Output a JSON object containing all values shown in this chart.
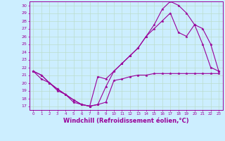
{
  "background_color": "#cceeff",
  "grid_color": "#bbddcc",
  "line_color": "#990099",
  "marker": "*",
  "xlabel": "Windchill (Refroidissement éolien,°C)",
  "xlabel_fontsize": 6.0,
  "xtick_labels": [
    "0",
    "1",
    "2",
    "3",
    "4",
    "5",
    "6",
    "7",
    "8",
    "9",
    "10",
    "11",
    "12",
    "13",
    "14",
    "15",
    "16",
    "17",
    "18",
    "19",
    "20",
    "21",
    "22",
    "23"
  ],
  "ylabel_ticks": [
    17,
    18,
    19,
    20,
    21,
    22,
    23,
    24,
    25,
    26,
    27,
    28,
    29,
    30
  ],
  "xlim": [
    -0.5,
    23.5
  ],
  "ylim": [
    16.5,
    30.5
  ],
  "lines": [
    {
      "x": [
        0,
        1,
        2,
        3,
        4,
        5,
        6,
        7,
        8,
        9,
        10,
        11,
        12,
        13,
        14,
        15,
        16,
        17,
        18,
        19,
        20,
        21,
        22,
        23
      ],
      "y": [
        21.5,
        20.5,
        20.0,
        19.0,
        18.5,
        17.5,
        17.2,
        17.0,
        17.2,
        17.5,
        20.3,
        20.5,
        20.8,
        21.0,
        21.0,
        21.2,
        21.2,
        21.2,
        21.2,
        21.2,
        21.2,
        21.2,
        21.2,
        21.2
      ]
    },
    {
      "x": [
        0,
        1,
        2,
        3,
        4,
        5,
        6,
        7,
        8,
        9,
        10,
        11,
        12,
        13,
        14,
        15,
        16,
        17,
        18,
        19,
        20,
        21,
        22,
        23
      ],
      "y": [
        21.5,
        21.0,
        20.0,
        19.2,
        18.5,
        17.8,
        17.2,
        17.0,
        17.2,
        19.5,
        21.5,
        22.5,
        23.5,
        24.5,
        26.0,
        27.5,
        29.5,
        30.5,
        30.0,
        29.0,
        27.5,
        25.0,
        22.0,
        21.5
      ]
    },
    {
      "x": [
        0,
        1,
        2,
        3,
        4,
        5,
        6,
        7,
        8,
        9,
        10,
        11,
        12,
        13,
        14,
        15,
        16,
        17,
        18,
        19,
        20,
        21,
        22,
        23
      ],
      "y": [
        21.5,
        21.0,
        20.0,
        19.2,
        18.5,
        17.8,
        17.2,
        17.0,
        20.8,
        20.5,
        21.5,
        22.5,
        23.5,
        24.5,
        26.0,
        27.0,
        28.0,
        29.0,
        26.5,
        26.0,
        27.5,
        27.0,
        25.0,
        21.5
      ]
    }
  ]
}
